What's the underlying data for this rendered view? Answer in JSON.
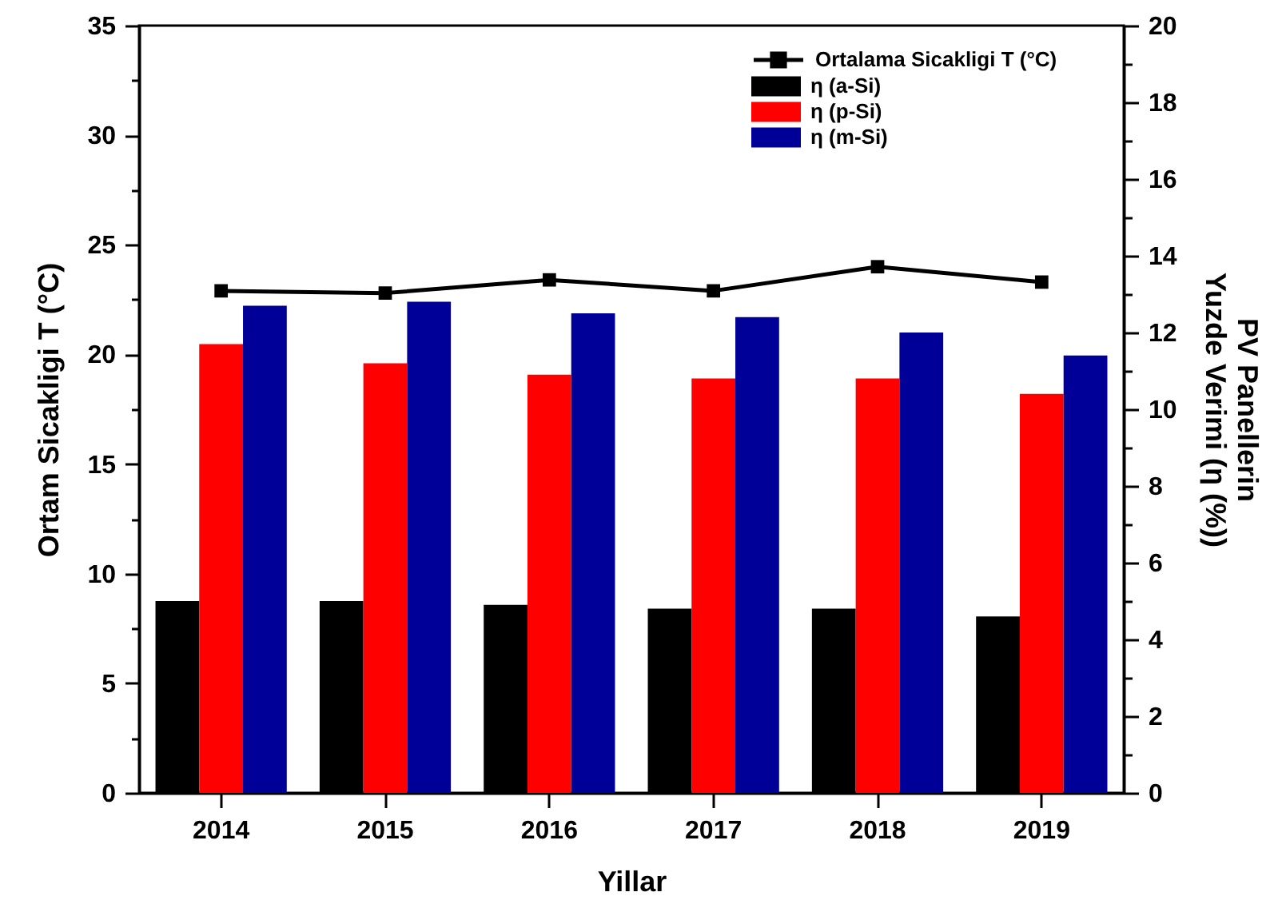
{
  "chart_data": {
    "type": "bar",
    "xlabel": "Yillar",
    "ylabel": "Ortam Sicakligi T (°C)",
    "y2label": "PV Panellerin\nYuzde Verimi (η (%))",
    "categories": [
      "2014",
      "2015",
      "2016",
      "2017",
      "2018",
      "2019"
    ],
    "series": [
      {
        "name": "Ortalama Sicakligi T (°C)",
        "type": "line",
        "axis": "y",
        "color": "#000000",
        "values": [
          22.9,
          22.8,
          23.4,
          22.9,
          24.0,
          23.3
        ]
      },
      {
        "name": "η (a-Si)",
        "axis": "y2",
        "color": "#000000",
        "values": [
          5.0,
          5.0,
          4.9,
          4.8,
          4.8,
          4.6
        ]
      },
      {
        "name": "η (p-Si)",
        "axis": "y2",
        "color": "#ff0000",
        "values": [
          11.7,
          11.2,
          10.9,
          10.8,
          10.8,
          10.4
        ]
      },
      {
        "name": "η (m-Si)",
        "axis": "y2",
        "color": "#000099",
        "values": [
          12.7,
          12.8,
          12.5,
          12.4,
          12.0,
          11.4
        ]
      }
    ],
    "ylim": [
      0,
      35
    ],
    "yticks": [
      0,
      {
        "value": 2.5,
        "label": null
      },
      5,
      {
        "value": 7.5,
        "label": null
      },
      10,
      {
        "value": 12.5,
        "label": null
      },
      15,
      {
        "value": 17.5,
        "label": null
      },
      20,
      {
        "value": 22.5,
        "label": null
      },
      25,
      {
        "value": 27.5,
        "label": null
      },
      30,
      {
        "value": 32.5,
        "label": null
      },
      35
    ],
    "y2lim": [
      0,
      20
    ],
    "y2ticks": [
      0,
      {
        "value": 1,
        "label": null
      },
      2,
      {
        "value": 3,
        "label": null
      },
      4,
      {
        "value": 5,
        "label": null
      },
      6,
      {
        "value": 7,
        "label": null
      },
      8,
      {
        "value": 9,
        "label": null
      },
      10,
      {
        "value": 11,
        "label": null
      },
      12,
      {
        "value": 13,
        "label": null
      },
      14,
      {
        "value": 15,
        "label": null
      },
      16,
      {
        "value": 17,
        "label": null
      },
      18,
      {
        "value": 19,
        "label": null
      },
      20
    ],
    "marker": "square",
    "line_style": "solid",
    "legend": "top right",
    "grid": false
  }
}
